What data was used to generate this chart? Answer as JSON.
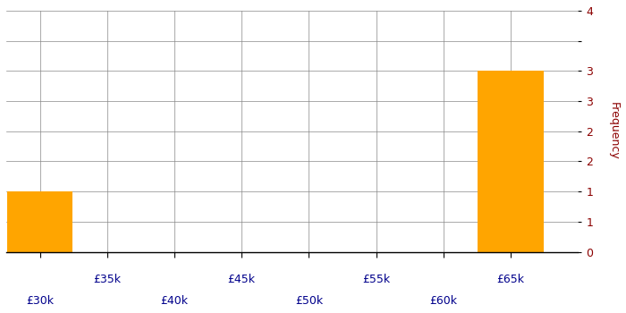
{
  "bin_edges": [
    27500,
    32500,
    37500,
    42500,
    47500,
    52500,
    57500,
    62500,
    67500
  ],
  "frequencies": [
    1,
    0,
    0,
    0,
    0,
    0,
    0,
    3
  ],
  "bar_color": "#FFA500",
  "bar_edgecolor": "#FFA500",
  "ylabel": "Frequency",
  "ylabel_color": "#8B0000",
  "ytick_color": "#8B0000",
  "xtick_color_odd": "#00008B",
  "xtick_color_even": "#00008B",
  "ylim": [
    0,
    4
  ],
  "yticks": [
    0,
    0.5,
    1,
    1.5,
    2,
    2.5,
    3,
    3.5,
    4
  ],
  "ytick_labels": [
    "0",
    "1",
    "1",
    "2",
    "2",
    "3",
    "3",
    "",
    "4"
  ],
  "xlim": [
    27500,
    70000
  ],
  "xtick_positions_bottom": [
    30000,
    40000,
    50000,
    60000
  ],
  "xtick_labels_bottom": [
    "£30k",
    "£40k",
    "£50k",
    "£60k"
  ],
  "xtick_positions_top": [
    35000,
    45000,
    55000,
    65000
  ],
  "xtick_labels_top": [
    "£35k",
    "£45k",
    "£55k",
    "£65k"
  ],
  "grid_color": "#888888",
  "background_color": "#ffffff",
  "figsize": [
    7.0,
    3.5
  ],
  "dpi": 100
}
